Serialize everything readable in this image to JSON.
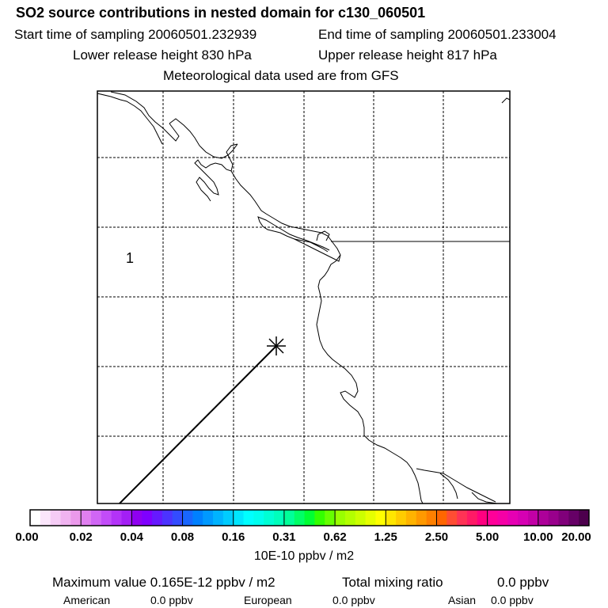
{
  "header": {
    "title": "SO2 source contributions in nested domain for c130_060501",
    "start_time": "Start time of sampling 20060501.232939",
    "end_time": "End time of sampling 20060501.233004",
    "lower_release": "Lower release height  830 hPa",
    "upper_release": "Upper release height  817 hPa",
    "met_data": "Meteorological data used are from GFS"
  },
  "map": {
    "marker_label": "1",
    "source_marker_icon": "asterisk-star-icon",
    "trajectory_color": "#000000",
    "coastline_color": "#000000",
    "grid_style": "dashed"
  },
  "colorbar": {
    "tick_labels": [
      "0.00",
      "0.02",
      "0.04",
      "0.08",
      "0.16",
      "0.31",
      "0.62",
      "1.25",
      "2.50",
      "5.00",
      "10.00",
      "20.00"
    ],
    "colors": [
      "#ffffff",
      "#fbe6fb",
      "#f5ccf5",
      "#f0b3f0",
      "#eb99eb",
      "#e07ff0",
      "#d066f5",
      "#c24cf8",
      "#b333f8",
      "#a31ff5",
      "#8f00f0",
      "#7f00ff",
      "#6619ff",
      "#4c33ff",
      "#334cff",
      "#1966ff",
      "#0080ff",
      "#0099ff",
      "#00b3ff",
      "#00ccff",
      "#00e6ff",
      "#00ffff",
      "#00ffee",
      "#00ffd4",
      "#00ffbb",
      "#00ff99",
      "#00ff66",
      "#00ff33",
      "#33ff00",
      "#66ff00",
      "#99ff00",
      "#b3ff00",
      "#ccff00",
      "#e6ff00",
      "#ffff00",
      "#ffe600",
      "#ffcc00",
      "#ffb300",
      "#ff9900",
      "#ff8000",
      "#ff6600",
      "#ff4d33",
      "#ff3355",
      "#ff1a66",
      "#ff0080",
      "#ff0099",
      "#f500a6",
      "#e600b3",
      "#d600b3",
      "#c200a6",
      "#ad0099",
      "#99008c",
      "#80007a",
      "#660066",
      "#4d004d"
    ],
    "units": "10E-10 ppbv / m2"
  },
  "footer": {
    "max_value": "Maximum value  0.165E-12 ppbv / m2",
    "total_mixing": "Total mixing ratio",
    "total_value": "0.0 ppbv",
    "american_label": "American",
    "american_value": "0.0 ppbv",
    "european_label": "European",
    "european_value": "0.0 ppbv",
    "asian_label": "Asian",
    "asian_value": "0.0 ppbv"
  }
}
